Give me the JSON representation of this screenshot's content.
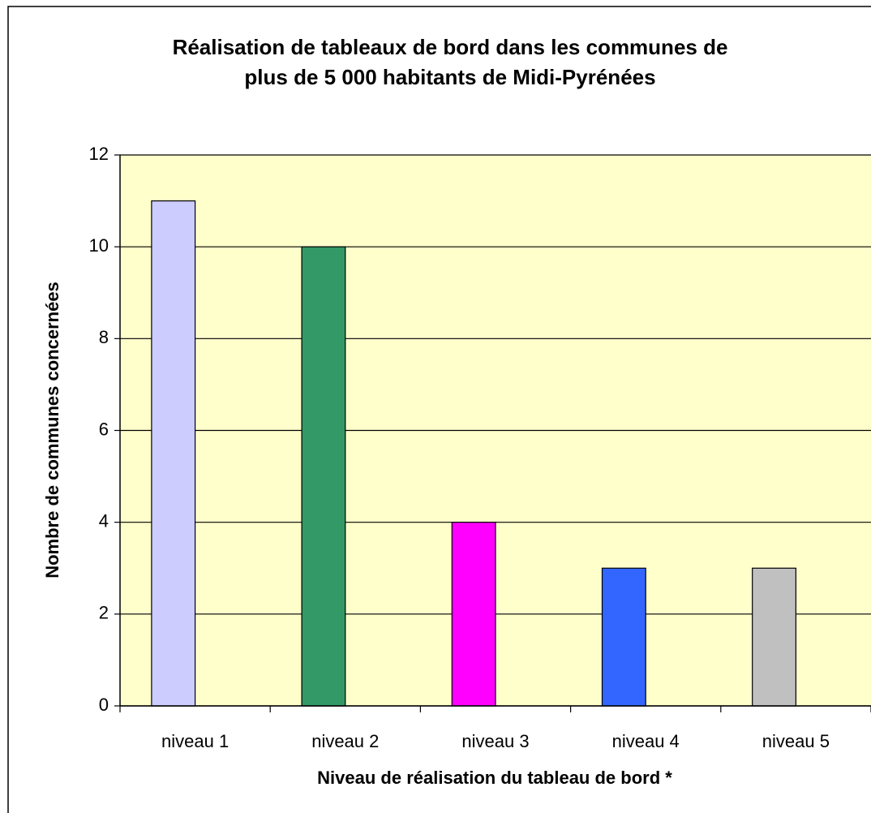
{
  "chart_data": {
    "type": "bar",
    "title": [
      "Réalisation de tableaux de bord dans les communes de",
      "plus de 5 000 habitants de Midi-Pyrénées"
    ],
    "x_label": "Niveau de réalisation du tableau de bord *",
    "y_label": "Nombre de communes concernées",
    "categories": [
      "niveau 1",
      "niveau 2",
      "niveau 3",
      "niveau 4",
      "niveau 5"
    ],
    "values": [
      11,
      10,
      4,
      3,
      3
    ],
    "colors": [
      "#ccccff",
      "#339966",
      "#ff00ff",
      "#3366ff",
      "#c0c0c0"
    ],
    "ylim": [
      0,
      12
    ],
    "yticks": [
      0,
      2,
      4,
      6,
      8,
      10,
      12
    ],
    "grid": true
  }
}
